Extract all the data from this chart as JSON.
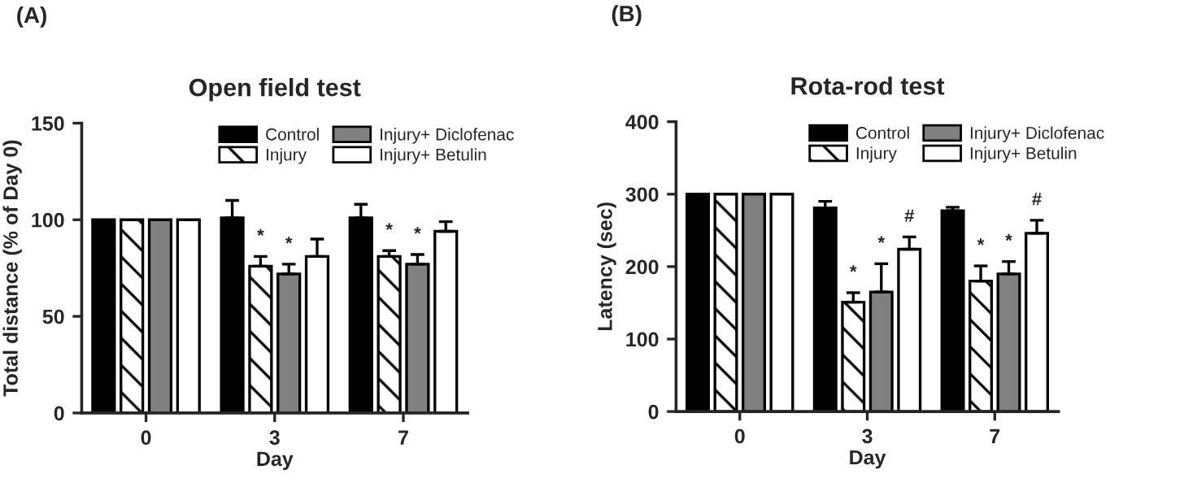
{
  "chart_data": [
    {
      "type": "bar",
      "title": "Open field test",
      "xlabel": "Day",
      "ylabel": "Total distance (% of Day 0)",
      "categories": [
        "0",
        "3",
        "7"
      ],
      "ylim": [
        0,
        150
      ],
      "yticks": [
        0,
        50,
        100,
        150
      ],
      "grid": false,
      "legend": "top right",
      "series": [
        {
          "name": "Control",
          "color": "#000000",
          "values": [
            100,
            101,
            101
          ],
          "errors": [
            null,
            [
              101,
              110
            ],
            [
              101,
              108
            ]
          ]
        },
        {
          "name": "Injury",
          "color": "#000000",
          "values": [
            100,
            76,
            81
          ],
          "errors": [
            null,
            [
              76,
              81
            ],
            [
              81,
              84
            ]
          ],
          "value_labels": [
            null,
            "*",
            "*"
          ]
        },
        {
          "name": "Injury+ Diclofenac",
          "color": "#808080",
          "values": [
            100,
            72,
            77
          ],
          "errors": [
            null,
            [
              72,
              77
            ],
            [
              77,
              82
            ]
          ],
          "value_labels": [
            null,
            "*",
            "*"
          ]
        },
        {
          "name": "Injury+ Betulin",
          "color": "#ffffff",
          "values": [
            100,
            81,
            94
          ],
          "errors": [
            null,
            [
              81,
              90
            ],
            [
              94,
              99
            ]
          ]
        }
      ],
      "annotations": [
        "(A)"
      ]
    },
    {
      "type": "bar",
      "title": "Rota-rod test",
      "xlabel": "Day",
      "ylabel": "Latency (sec)",
      "categories": [
        "0",
        "3",
        "7"
      ],
      "ylim": [
        0,
        400
      ],
      "yticks": [
        0,
        100,
        200,
        300,
        400
      ],
      "grid": false,
      "legend": "top right",
      "series": [
        {
          "name": "Control",
          "color": "#000000",
          "values": [
            300,
            281,
            277
          ],
          "errors": [
            null,
            [
              281,
              290
            ],
            [
              277,
              282
            ]
          ]
        },
        {
          "name": "Injury",
          "color": "#000000",
          "values": [
            300,
            151,
            180
          ],
          "errors": [
            null,
            [
              151,
              164
            ],
            [
              180,
              201
            ]
          ],
          "value_labels": [
            null,
            "*",
            "*"
          ]
        },
        {
          "name": "Injury+ Diclofenac",
          "color": "#808080",
          "values": [
            300,
            165,
            190
          ],
          "errors": [
            null,
            [
              165,
              204
            ],
            [
              190,
              207
            ]
          ],
          "value_labels": [
            null,
            "*",
            "*"
          ]
        },
        {
          "name": "Injury+ Betulin",
          "color": "#ffffff",
          "values": [
            300,
            224,
            246
          ],
          "errors": [
            null,
            [
              224,
              241
            ],
            [
              246,
              264
            ]
          ],
          "value_labels": [
            null,
            "#",
            "#"
          ]
        }
      ],
      "annotations": [
        "(B)"
      ]
    }
  ]
}
